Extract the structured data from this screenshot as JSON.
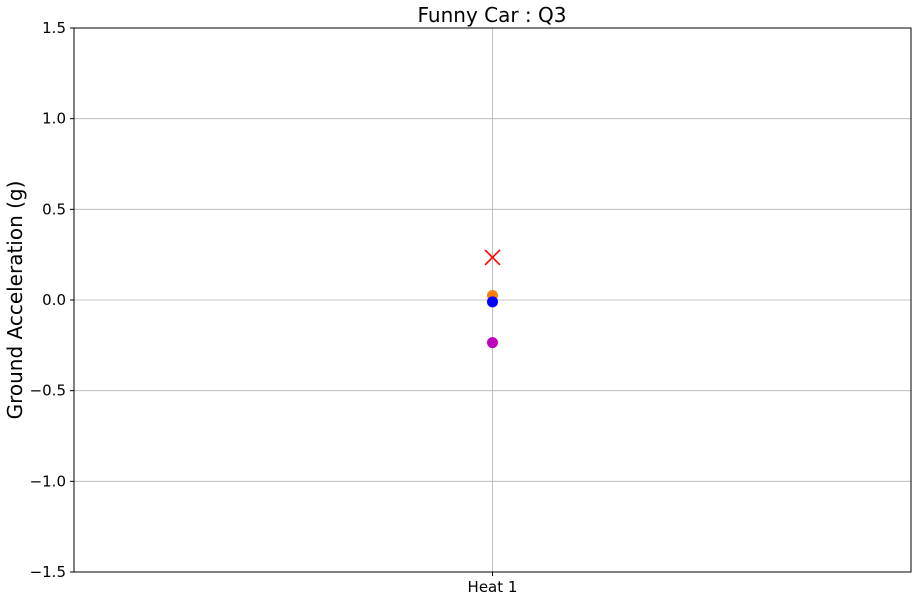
{
  "chart_data": {
    "type": "scatter",
    "title": "Funny Car : Q3",
    "xlabel": "",
    "ylabel": "Ground Acceleration (g)",
    "categories": [
      "Heat 1"
    ],
    "ylim": [
      -1.5,
      1.5
    ],
    "yticks": [
      -1.5,
      -1.0,
      -0.5,
      0.0,
      0.5,
      1.0,
      1.5
    ],
    "ytick_labels": [
      "−1.5",
      "−1.0",
      "−0.5",
      "0.0",
      "0.5",
      "1.0",
      "1.5"
    ],
    "grid": true,
    "legend": "none",
    "series": [
      {
        "color": "#ff0000",
        "marker": "x",
        "values": [
          0.235
        ]
      },
      {
        "color": "#ff7f0e",
        "marker": "o",
        "values": [
          0.025
        ]
      },
      {
        "color": "#0000ff",
        "marker": "o",
        "values": [
          -0.01
        ]
      },
      {
        "color": "#bf00bf",
        "marker": "o",
        "values": [
          -0.235
        ]
      }
    ]
  }
}
